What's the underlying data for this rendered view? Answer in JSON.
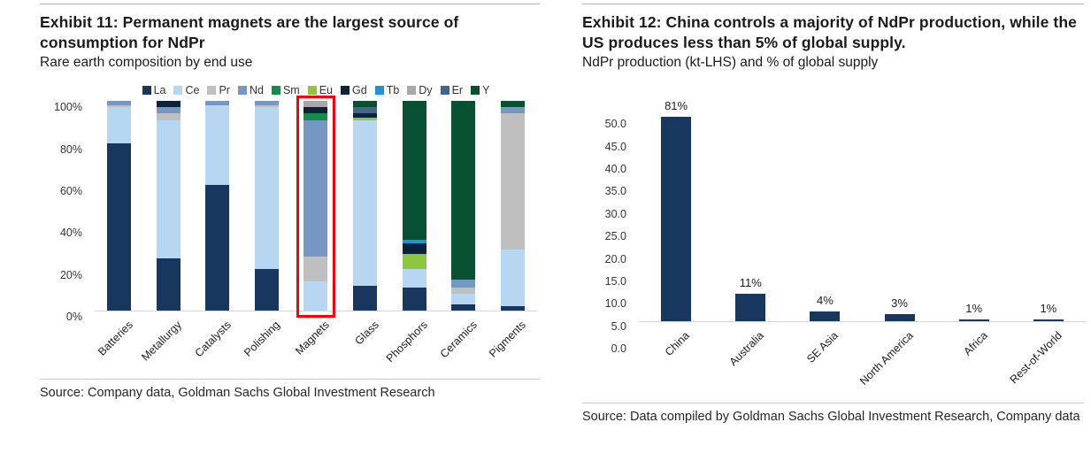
{
  "exhibits": [
    {
      "title": "Exhibit 11: Permanent magnets are the largest source of consumption for NdPr",
      "subtitle": "Rare earth composition by end use",
      "source": "Source: Company data, Goldman Sachs Global Investment Research"
    },
    {
      "title": "Exhibit 12: China controls a majority of NdPr production, while the US produces less than 5% of global supply.",
      "subtitle": "NdPr production (kt-LHS) and % of global supply",
      "source": "Source: Data compiled by Goldman Sachs Global Investment Research, Company data"
    }
  ],
  "chart_data": [
    {
      "type": "bar",
      "variant": "stacked-100-percent",
      "title": "Rare earth composition by end use",
      "categories": [
        "Batteries",
        "Metallurgy",
        "Catalysts",
        "Polishing",
        "Magnets",
        "Glass",
        "Phosphors",
        "Ceramics",
        "Pigments"
      ],
      "series": [
        {
          "name": "La",
          "color": "#17375E",
          "values": [
            80,
            25,
            60,
            20,
            0,
            12,
            11,
            3,
            2
          ]
        },
        {
          "name": "Ce",
          "color": "#B7D6F1",
          "values": [
            17,
            66,
            38,
            77,
            14,
            79,
            9,
            5,
            27
          ]
        },
        {
          "name": "Pr",
          "color": "#BFBFBF",
          "values": [
            1,
            3,
            0,
            1,
            12,
            0,
            0,
            3,
            65
          ]
        },
        {
          "name": "Nd",
          "color": "#7697C4",
          "values": [
            2,
            3,
            2,
            2,
            65,
            0,
            0,
            4,
            3
          ]
        },
        {
          "name": "Sm",
          "color": "#148C4A",
          "values": [
            0,
            0,
            0,
            0,
            3,
            0,
            0,
            0,
            0
          ]
        },
        {
          "name": "Eu",
          "color": "#8CC63E",
          "values": [
            0,
            0,
            0,
            0,
            0,
            1,
            7,
            0,
            0
          ]
        },
        {
          "name": "Gd",
          "color": "#0D2339",
          "values": [
            0,
            3,
            0,
            0,
            3,
            2,
            5,
            0,
            0
          ]
        },
        {
          "name": "Tb",
          "color": "#2292D4",
          "values": [
            0,
            0,
            0,
            0,
            0,
            0,
            2,
            0,
            0
          ]
        },
        {
          "name": "Dy",
          "color": "#A8A8A8",
          "values": [
            0,
            0,
            0,
            0,
            3,
            0,
            0,
            0,
            0
          ]
        },
        {
          "name": "Er",
          "color": "#42648F",
          "values": [
            0,
            0,
            0,
            0,
            0,
            3,
            0,
            0,
            0
          ]
        },
        {
          "name": "Y",
          "color": "#075030",
          "values": [
            0,
            0,
            0,
            0,
            0,
            3,
            66,
            85,
            3
          ]
        }
      ],
      "yticks": [
        "100%",
        "80%",
        "60%",
        "40%",
        "20%",
        "0%"
      ],
      "ylim": [
        0,
        100
      ],
      "legend_position": "top",
      "grid": false,
      "highlight_category": "Magnets",
      "highlight_color": "#fb0007"
    },
    {
      "type": "bar",
      "title": "NdPr production (kt-LHS) and % of global supply",
      "categories": [
        "China",
        "Australia",
        "SE Asia",
        "North America",
        "Africa",
        "Rest-of-World"
      ],
      "values": [
        45.5,
        6.2,
        2.2,
        1.6,
        0.5,
        0.5
      ],
      "data_labels": [
        "81%",
        "11%",
        "4%",
        "3%",
        "1%",
        "1%"
      ],
      "bar_color": "#17375E",
      "yticks": [
        "50.0",
        "45.0",
        "40.0",
        "35.0",
        "30.0",
        "25.0",
        "20.0",
        "15.0",
        "10.0",
        "5.0",
        "0.0"
      ],
      "ylim": [
        0,
        50
      ],
      "grid": false,
      "legend_position": "none"
    }
  ]
}
